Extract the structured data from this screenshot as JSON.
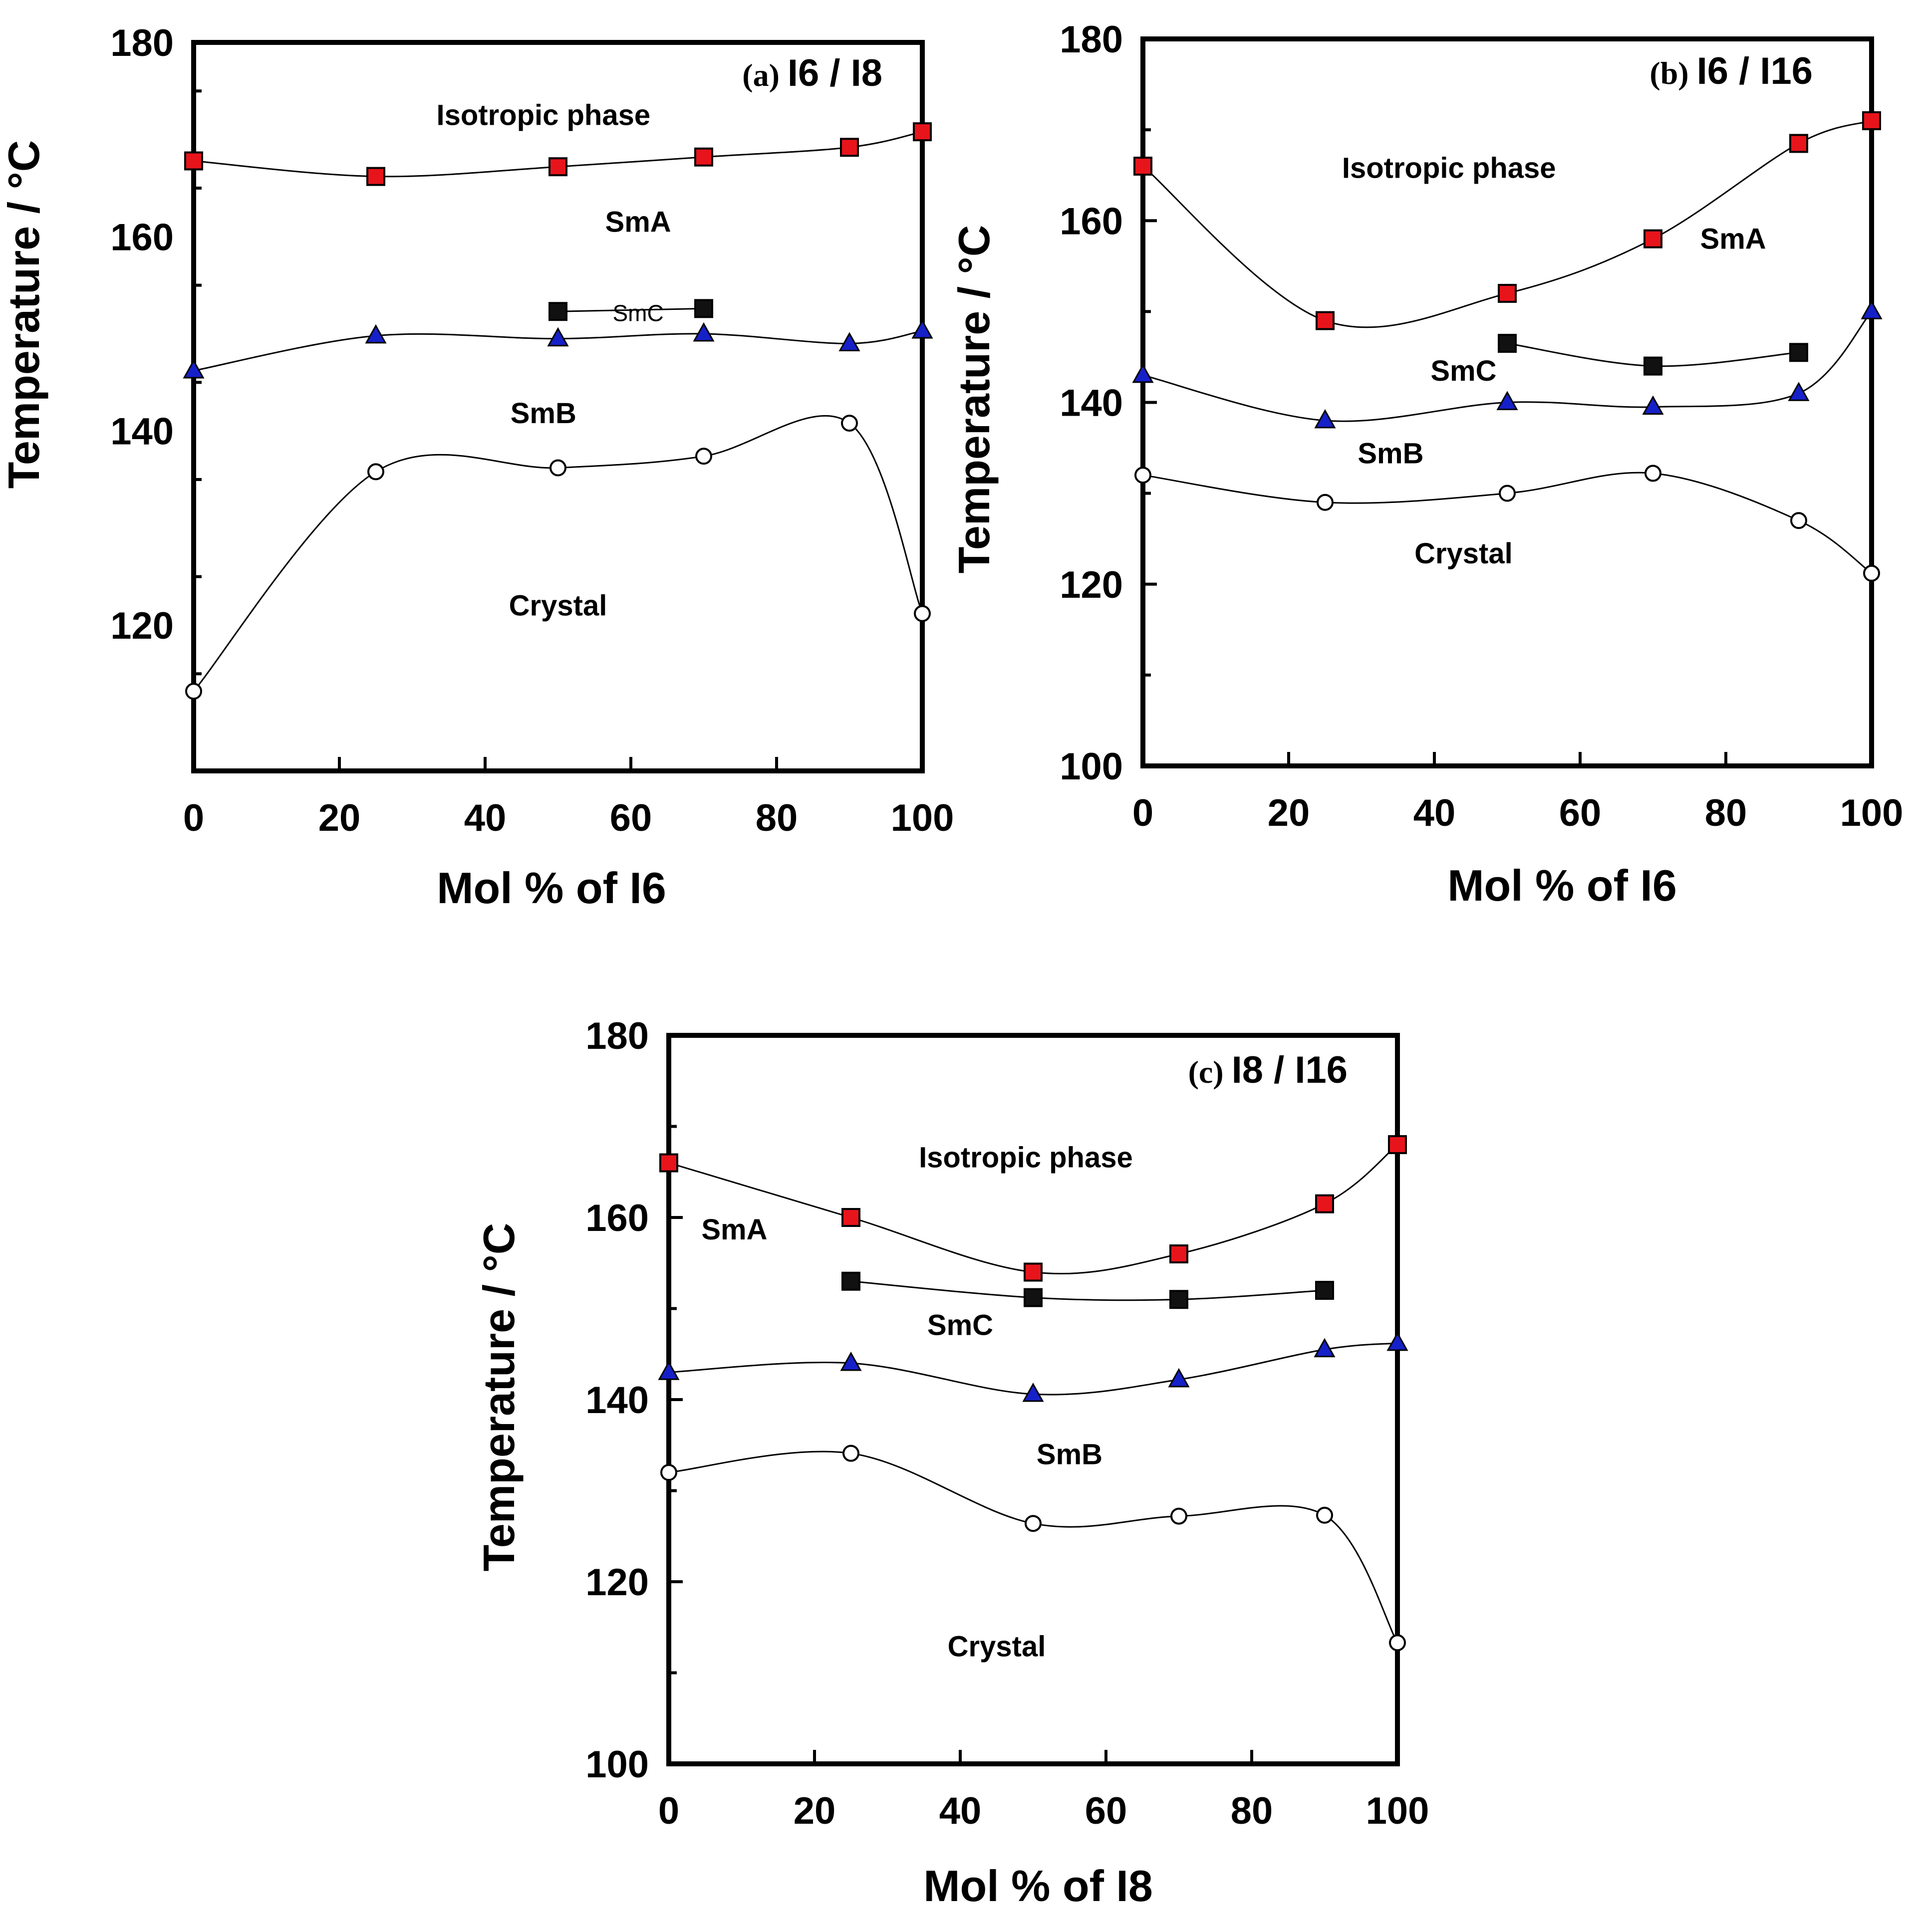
{
  "chart_data": [
    {
      "type": "scatter",
      "panel": "a",
      "title": "I6 / I8",
      "panel_tag": "(a)",
      "xlabel": "Mol % of I6",
      "ylabel": "Temperature / °C",
      "xlim": [
        0,
        100
      ],
      "ylim": [
        105,
        180
      ],
      "xticks": [
        0,
        20,
        40,
        60,
        80,
        100
      ],
      "yticks": [
        120,
        140,
        160,
        180
      ],
      "grid": false,
      "series": [
        {
          "marker": "square",
          "color": "#e8141b",
          "x": [
            0,
            25,
            50,
            70,
            90,
            100
          ],
          "y": [
            167.8,
            166.2,
            167.2,
            168.2,
            169.2,
            170.8
          ]
        },
        {
          "marker": "square",
          "color": "#111111",
          "x": [
            50,
            70
          ],
          "y": [
            152.3,
            152.6
          ]
        },
        {
          "marker": "triangle",
          "color": "#1520c8",
          "x": [
            0,
            25,
            50,
            70,
            90,
            100
          ],
          "y": [
            146.2,
            149.8,
            149.5,
            150.0,
            149.0,
            150.3
          ]
        },
        {
          "marker": "open-circle",
          "color": "#000000",
          "x": [
            0,
            25,
            50,
            70,
            90,
            100
          ],
          "y": [
            113.2,
            135.8,
            136.2,
            137.4,
            140.8,
            121.2
          ]
        }
      ],
      "annotations": [
        {
          "text": "Isotropic phase",
          "x": 48,
          "y": 171.5
        },
        {
          "text": "SmA",
          "x": 61,
          "y": 160.5
        },
        {
          "text": "SmC",
          "x": 61,
          "y": 151.3,
          "small": true
        },
        {
          "text": "SmB",
          "x": 48,
          "y": 140.8
        },
        {
          "text": "Crystal",
          "x": 50,
          "y": 121.0
        }
      ]
    },
    {
      "type": "scatter",
      "panel": "b",
      "title": "I6 / I16",
      "panel_tag": "(b)",
      "xlabel": "Mol % of I6",
      "ylabel": "Temperature / °C",
      "xlim": [
        0,
        100
      ],
      "ylim": [
        100,
        180
      ],
      "xticks": [
        0,
        20,
        40,
        60,
        80,
        100
      ],
      "yticks": [
        100,
        120,
        140,
        160,
        180
      ],
      "grid": false,
      "series": [
        {
          "marker": "square",
          "color": "#e8141b",
          "x": [
            0,
            25,
            50,
            70,
            90,
            100
          ],
          "y": [
            166.0,
            149.0,
            152.0,
            158.0,
            168.5,
            171.0
          ]
        },
        {
          "marker": "square",
          "color": "#111111",
          "x": [
            50,
            70,
            90
          ],
          "y": [
            146.5,
            144.0,
            145.5
          ]
        },
        {
          "marker": "triangle",
          "color": "#1520c8",
          "x": [
            0,
            25,
            50,
            70,
            90,
            100
          ],
          "y": [
            143.0,
            138.0,
            140.0,
            139.5,
            141.0,
            150.0
          ]
        },
        {
          "marker": "open-circle",
          "color": "#000000",
          "x": [
            0,
            25,
            50,
            70,
            90,
            100
          ],
          "y": [
            132.0,
            129.0,
            130.0,
            132.2,
            127.0,
            121.2
          ]
        }
      ],
      "annotations": [
        {
          "text": "Isotropic phase",
          "x": 42,
          "y": 164.7
        },
        {
          "text": "SmA",
          "x": 81,
          "y": 156.9
        },
        {
          "text": "SmC",
          "x": 44,
          "y": 142.4
        },
        {
          "text": "SmB",
          "x": 34,
          "y": 133.3
        },
        {
          "text": "Crystal",
          "x": 44,
          "y": 122.3
        }
      ]
    },
    {
      "type": "scatter",
      "panel": "c",
      "title": "I8 / I16",
      "panel_tag": "(c)",
      "xlabel": "Mol % of I8",
      "ylabel": "Temperature / °C",
      "xlim": [
        0,
        100
      ],
      "ylim": [
        100,
        180
      ],
      "xticks": [
        0,
        20,
        40,
        60,
        80,
        100
      ],
      "yticks": [
        100,
        120,
        140,
        160,
        180
      ],
      "grid": false,
      "series": [
        {
          "marker": "square",
          "color": "#e8141b",
          "x": [
            0,
            25,
            50,
            70,
            90,
            100
          ],
          "y": [
            166.0,
            160.0,
            154.0,
            156.0,
            161.5,
            168.0
          ]
        },
        {
          "marker": "square",
          "color": "#111111",
          "x": [
            25,
            50,
            70,
            90
          ],
          "y": [
            153.0,
            151.2,
            151.0,
            152.0
          ]
        },
        {
          "marker": "triangle",
          "color": "#1520c8",
          "x": [
            0,
            25,
            50,
            70,
            90,
            100
          ],
          "y": [
            143.0,
            144.0,
            140.6,
            142.2,
            145.5,
            146.2
          ]
        },
        {
          "marker": "open-circle",
          "color": "#000000",
          "x": [
            0,
            25,
            50,
            70,
            90,
            100
          ],
          "y": [
            132.0,
            134.1,
            126.4,
            127.2,
            127.3,
            113.3
          ]
        }
      ],
      "annotations": [
        {
          "text": "Isotropic phase",
          "x": 49,
          "y": 165.5
        },
        {
          "text": "SmA",
          "x": 9,
          "y": 157.6
        },
        {
          "text": "SmC",
          "x": 40,
          "y": 147.1
        },
        {
          "text": "SmB",
          "x": 55,
          "y": 132.9
        },
        {
          "text": "Crystal",
          "x": 45,
          "y": 111.8
        }
      ]
    }
  ]
}
